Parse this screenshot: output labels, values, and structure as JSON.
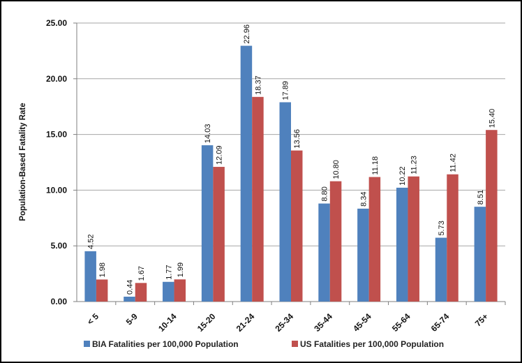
{
  "chart_data": {
    "type": "bar",
    "categories": [
      "< 5",
      "5-9",
      "10-14",
      "15-20",
      "21-24",
      "25-34",
      "35-44",
      "45-54",
      "55-64",
      "65-74",
      "75+"
    ],
    "series": [
      {
        "name": "BIA Fatalities per 100,000 Population",
        "color": "#4F81BD",
        "values": [
          4.52,
          0.44,
          1.77,
          14.03,
          22.96,
          17.89,
          8.8,
          8.34,
          10.22,
          5.73,
          8.51
        ],
        "labels": [
          "4.52",
          "0.44",
          "1.77",
          "14.03",
          "22.96",
          "17.89",
          "8.80",
          "8.34",
          "10.22",
          "5.73",
          "8.51"
        ]
      },
      {
        "name": "US Fatalities per 100,000 Population",
        "color": "#C0504D",
        "values": [
          1.98,
          1.67,
          1.99,
          12.09,
          18.37,
          13.56,
          10.8,
          11.18,
          11.23,
          11.42,
          15.4
        ],
        "labels": [
          "1.98",
          "1.67",
          "1.99",
          "12.09",
          "18.37",
          "13.56",
          "10.80",
          "11.18",
          "11.23",
          "11.42",
          "15.40"
        ]
      }
    ],
    "ylabel": "Population-Based Fatality Rate",
    "yticks": [
      "0.00",
      "5.00",
      "10.00",
      "15.00",
      "20.00",
      "25.00"
    ],
    "ylim": [
      0,
      25
    ],
    "grid": true,
    "legend_position": "bottom"
  }
}
